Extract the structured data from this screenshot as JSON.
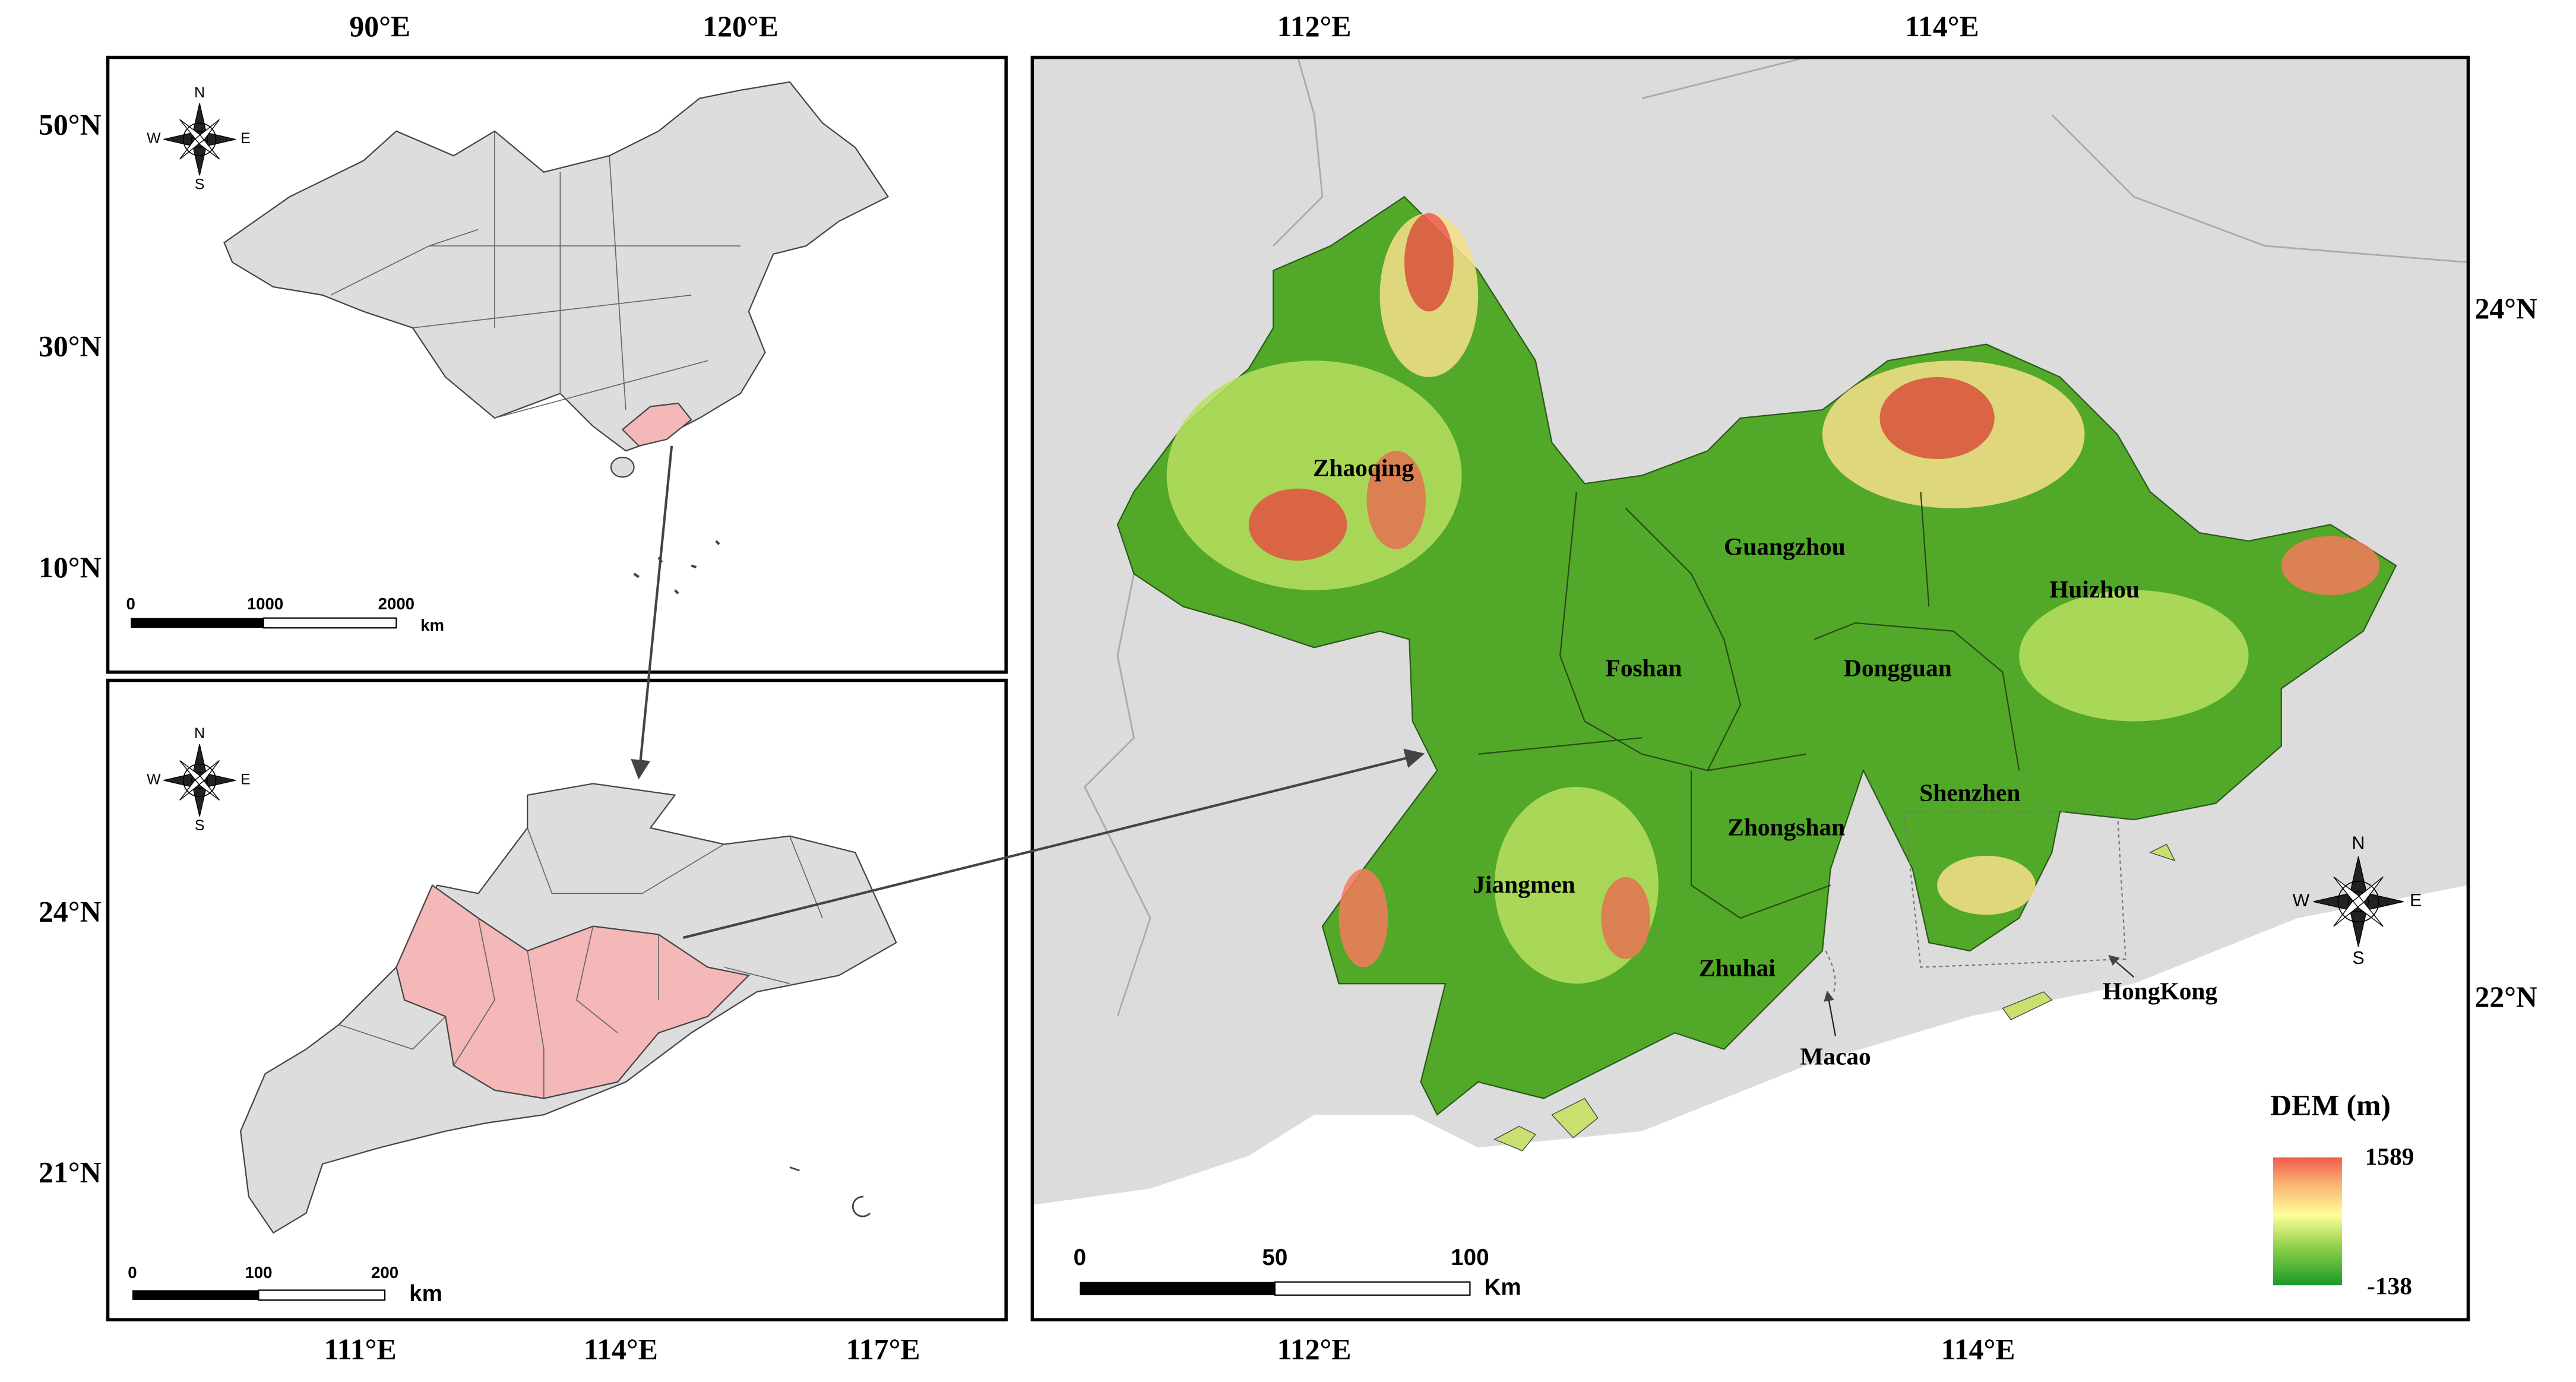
{
  "inset_china": {
    "top_labels": [
      "90°E",
      "120°E"
    ],
    "left_labels": [
      "50°N",
      "30°N",
      "10°N"
    ],
    "compass": [
      "N",
      "W",
      "E",
      "S"
    ],
    "scale_labels": [
      "0",
      "1000",
      "2000"
    ],
    "scale_unit": "km"
  },
  "inset_guangdong": {
    "left_labels": [
      "24°N",
      "21°N"
    ],
    "bottom_labels": [
      "111°E",
      "114°E",
      "117°E"
    ],
    "compass": [
      "N",
      "W",
      "E",
      "S"
    ],
    "scale_labels": [
      "0",
      "100",
      "200"
    ],
    "scale_unit": "km"
  },
  "main_map": {
    "top_labels": [
      "112°E",
      "114°E"
    ],
    "bottom_labels": [
      "112°E",
      "114°E"
    ],
    "right_labels": [
      "24°N",
      "22°N"
    ],
    "compass": [
      "N",
      "W",
      "E",
      "S"
    ],
    "scale_labels": [
      "0",
      "50",
      "100"
    ],
    "scale_unit": "Km",
    "cities": [
      "Zhaoqing",
      "Guangzhou",
      "Huizhou",
      "Foshan",
      "Dongguan",
      "Shenzhen",
      "Zhongshan",
      "Jiangmen",
      "Zhuhai",
      "Macao",
      "HongKong"
    ],
    "legend": {
      "title": "DEM (m)",
      "max": "1589",
      "min": "-138"
    }
  }
}
